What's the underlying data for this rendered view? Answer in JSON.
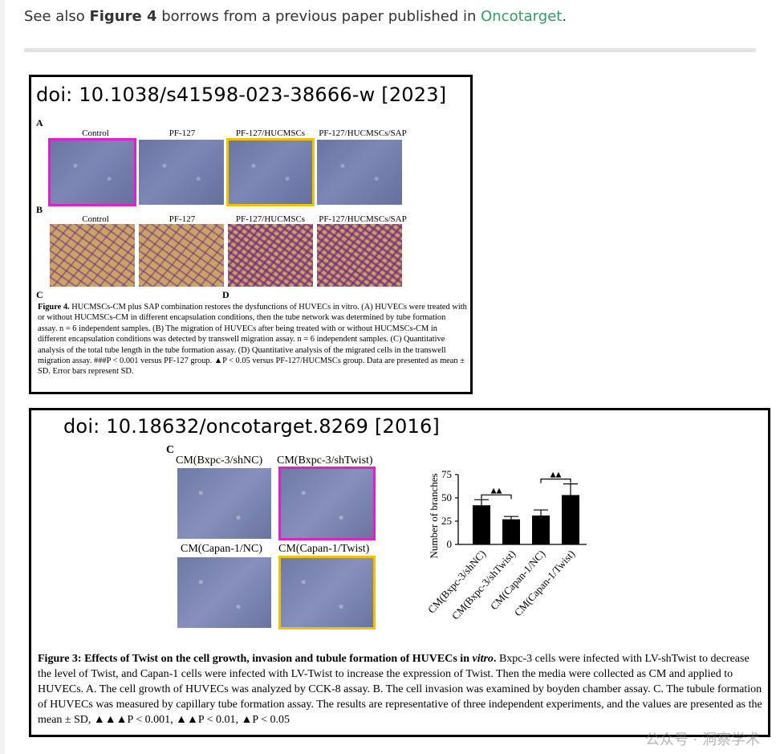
{
  "intro": {
    "prefix": "See also ",
    "figure_ref": "Figure 4",
    "middle": " borrows from a previous paper published in ",
    "journal_link": "Oncotarget",
    "suffix": "."
  },
  "card1": {
    "doi_label": "doi: 10.1038/s41598-023-38666-w [2023]",
    "panel_A": "A",
    "panel_B": "B",
    "panel_C": "C",
    "panel_D": "D",
    "row_a_labels": [
      "Control",
      "PF-127",
      "PF-127/HUCMSCs",
      "PF-127/HUCMSCs/SAP"
    ],
    "row_b_labels": [
      "Control",
      "PF-127",
      "PF-127/HUCMSCs",
      "PF-127/HUCMSCs/SAP"
    ],
    "caption_title": "Figure 4.",
    "caption_text": "HUCMSCs-CM plus SAP combination restores the dysfunctions of HUVECs in vitro. (A) HUVECs were treated with or without HUCMSCs-CM in different encapsulation conditions, then the tube network was determined by tube formation assay. n = 6 independent samples. (B) The migration of HUVECs after being treated with or without HUCMSCs-CM in different encapsulation conditions was detected by transwell migration assay. n = 6 independent samples. (C) Quantitative analysis of the total tube length in the tube formation assay. (D) Quantitative analysis of the migrated cells in the transwell migration assay. ###P < 0.001 versus PF-127 group. ▲P < 0.05 versus PF-127/HUCMSCs group. Data are presented as mean ± SD. Error bars represent SD."
  },
  "card2": {
    "doi_label": "doi: 10.18632/oncotarget.8269 [2016]",
    "panel_C": "C",
    "image_labels": [
      "CM(Bxpc-3/shNC)",
      "CM(Bxpc-3/shTwist)",
      "CM(Capan-1/NC)",
      "CM(Capan-1/Twist)"
    ],
    "caption_title": "Figure 3: Effects of Twist on the cell growth, invasion and tubule formation of HUVECs in ",
    "caption_title_italic": "vitro",
    "caption_title_end": ".",
    "caption_text": " Bxpc-3 cells were infected with LV-shTwist to decrease the level of Twist, and Capan-1 cells were infected with LV-Twist to increase the expression of Twist. Then the media were collected as CM and applied to HUVECs. A. The cell growth of HUVECs was analyzed by CCK-8 assay. B. The cell invasion was examined by boyden chamber assay. C. The tubule formation of HUVECs was measured by capillary tube formation assay. The results are representative of three independent experiments, and the values are presented as the mean ± SD, ▲▲▲P < 0.001, ▲▲P < 0.01, ▲P < 0.05"
  },
  "chart_data": {
    "type": "bar",
    "categories": [
      "CM(Bxpc-3/shNC)",
      "CM(Bxpc-3/shTwist)",
      "CM(Capan-1/NC)",
      "CM(Capan-1/Twist)"
    ],
    "values": [
      42,
      27,
      31,
      53
    ],
    "errors": [
      6,
      3,
      6,
      12
    ],
    "ylabel": "Number of branches",
    "ylim": [
      0,
      75
    ],
    "yticks": [
      0,
      25,
      50,
      75
    ],
    "significance": [
      {
        "pair": [
          0,
          1
        ],
        "label": "▲▲"
      },
      {
        "pair": [
          2,
          3
        ],
        "label": "▲▲"
      }
    ],
    "bar_color": "#000000"
  },
  "watermark": "公众号 · 洞察学术"
}
